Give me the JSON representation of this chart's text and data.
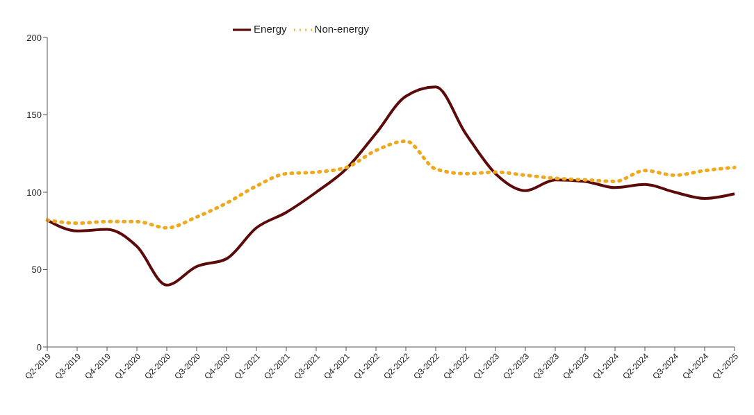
{
  "chart_data": {
    "type": "line",
    "categories": [
      "Q2-2019",
      "Q3-2019",
      "Q4-2019",
      "Q1-2020",
      "Q2-2020",
      "Q3-2020",
      "Q4-2020",
      "Q1-2021",
      "Q2-2021",
      "Q3-2021",
      "Q4-2021",
      "Q1-2022",
      "Q2-2022",
      "Q3-2022",
      "Q4-2022",
      "Q1-2023",
      "Q2-2023",
      "Q3-2023",
      "Q4-2023",
      "Q1-2024",
      "Q2-2024",
      "Q3-2024",
      "Q4-2024",
      "Q1-2025"
    ],
    "series": [
      {
        "name": "Energy",
        "color": "#5c0a0a",
        "line_style": "solid",
        "values": [
          82,
          75,
          76,
          65,
          40,
          52,
          57,
          77,
          87,
          100,
          115,
          138,
          162,
          168,
          138,
          112,
          101,
          108,
          107,
          103,
          105,
          100,
          96,
          99
        ]
      },
      {
        "name": "Non-energy",
        "color": "#f0a81c",
        "line_style": "dotted",
        "values": [
          82,
          80,
          81,
          81,
          77,
          84,
          93,
          104,
          112,
          113,
          116,
          127,
          133,
          115,
          112,
          113,
          111,
          109,
          108,
          107,
          114,
          111,
          114,
          116
        ]
      }
    ],
    "ylim": [
      0,
      200
    ],
    "yticks": [
      0,
      50,
      100,
      150,
      200
    ],
    "legend": "top",
    "marker": "none"
  }
}
